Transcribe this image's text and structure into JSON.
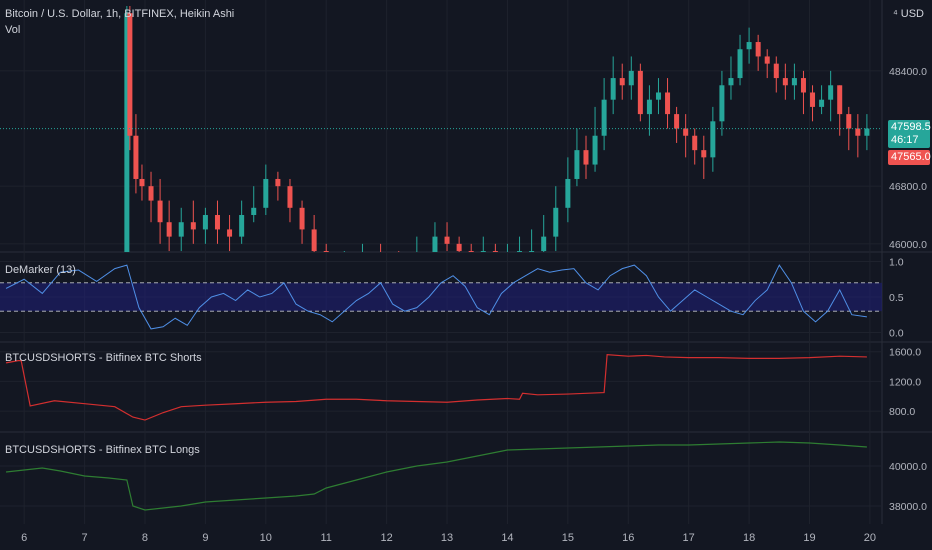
{
  "header": {
    "symbol_title": "Bitcoin / U.S. Dollar, 1h, BITFINEX, Heikin Ashi",
    "vol_label": "Vol",
    "currency": "USD"
  },
  "price_tags": {
    "last_price": "47598.5",
    "countdown": "46:17",
    "second_price": "47565.0"
  },
  "colors": {
    "background": "#131722",
    "up": "#26a69a",
    "down": "#ef5350",
    "demarker": "#4f8fe6",
    "demarker_band": "#1f1f7a",
    "shorts": "#d32f2f",
    "longs": "#2e7d32",
    "grid": "#1e222d",
    "text": "#b2b5be"
  },
  "chart_data": [
    {
      "type": "candlestick",
      "title": "Bitcoin / U.S. Dollar, 1h, BITFINEX, Heikin Ashi",
      "x_ticks": [
        "6",
        "7",
        "8",
        "9",
        "10",
        "11",
        "12",
        "13",
        "14",
        "15",
        "16",
        "17",
        "18",
        "19",
        "20"
      ],
      "y_ticks": [
        46000.0,
        46800.0,
        48400.0
      ],
      "ylim": [
        45970,
        49300
      ],
      "x_range": [
        5.6,
        20.2
      ],
      "series": [
        {
          "name": "",
          "x": [
            5.7,
            6.0,
            6.3,
            6.6,
            6.9,
            7.2,
            7.5,
            7.7,
            7.75,
            7.85,
            7.95,
            8.1,
            8.25,
            8.4,
            8.6,
            8.8,
            9.0,
            9.2,
            9.4,
            9.6,
            9.8,
            10.0,
            10.2,
            10.4,
            10.6,
            10.8,
            11.0,
            11.3,
            11.6,
            11.9,
            12.2,
            12.5,
            12.8,
            13.0,
            13.2,
            13.4,
            13.6,
            13.8,
            14.0,
            14.2,
            14.4,
            14.6,
            14.8,
            15.0,
            15.15,
            15.3,
            15.45,
            15.6,
            15.75,
            15.9,
            16.05,
            16.2,
            16.35,
            16.5,
            16.65,
            16.8,
            16.95,
            17.1,
            17.25,
            17.4,
            17.55,
            17.7,
            17.85,
            18.0,
            18.15,
            18.3,
            18.45,
            18.6,
            18.75,
            18.9,
            19.05,
            19.2,
            19.35,
            19.5,
            19.65,
            19.8,
            19.95
          ],
          "open": [
            45500,
            45500,
            45500,
            45500,
            45500,
            45500,
            45500,
            45700,
            49200,
            47500,
            46900,
            46800,
            46600,
            46300,
            46100,
            46300,
            46200,
            46400,
            46200,
            46100,
            46400,
            46500,
            46900,
            46800,
            46500,
            46200,
            45900,
            45600,
            45700,
            45800,
            45700,
            45600,
            45800,
            46100,
            46000,
            45900,
            45800,
            45900,
            45700,
            45800,
            45900,
            45900,
            46100,
            46500,
            46900,
            47300,
            47100,
            47500,
            48000,
            48300,
            48200,
            48400,
            47800,
            48000,
            48100,
            47800,
            47600,
            47500,
            47300,
            47200,
            47700,
            48200,
            48300,
            48700,
            48800,
            48600,
            48500,
            48300,
            48200,
            48300,
            48100,
            47900,
            48000,
            48200,
            47800,
            47600,
            47500
          ],
          "close": [
            45500,
            45500,
            45500,
            45500,
            45500,
            45500,
            45500,
            49200,
            47500,
            46900,
            46800,
            46600,
            46300,
            46100,
            46300,
            46200,
            46400,
            46200,
            46100,
            46400,
            46500,
            46900,
            46800,
            46500,
            46200,
            45900,
            45600,
            45700,
            45800,
            45700,
            45600,
            45800,
            46100,
            46000,
            45900,
            45800,
            45900,
            45700,
            45800,
            45900,
            45900,
            46100,
            46500,
            46900,
            47300,
            47100,
            47500,
            48000,
            48300,
            48200,
            48400,
            47800,
            48000,
            48100,
            47800,
            47600,
            47500,
            47300,
            47200,
            47700,
            48200,
            48300,
            48700,
            48800,
            48600,
            48500,
            48300,
            48200,
            48300,
            48100,
            47900,
            48000,
            48200,
            47800,
            47600,
            47500,
            47600
          ],
          "high": [
            45550,
            45550,
            45550,
            45550,
            45550,
            45550,
            45550,
            49300,
            49300,
            47800,
            47100,
            47000,
            46900,
            46600,
            46500,
            46600,
            46500,
            46600,
            46400,
            46600,
            46800,
            47100,
            47000,
            46900,
            46600,
            46400,
            46000,
            45900,
            46000,
            46000,
            45900,
            46100,
            46300,
            46300,
            46100,
            46000,
            46100,
            46000,
            46000,
            46100,
            46200,
            46400,
            46800,
            47200,
            47600,
            47500,
            47900,
            48300,
            48600,
            48500,
            48600,
            48500,
            48200,
            48300,
            48300,
            47900,
            47800,
            47600,
            47500,
            47900,
            48400,
            48600,
            48900,
            49000,
            48900,
            48700,
            48600,
            48500,
            48500,
            48400,
            48200,
            48200,
            48400,
            48200,
            47900,
            47800,
            47800
          ],
          "low": [
            45450,
            45450,
            45450,
            45450,
            45450,
            45450,
            45450,
            45600,
            47300,
            46700,
            46600,
            46300,
            46000,
            45900,
            45900,
            46000,
            46000,
            46000,
            45900,
            46000,
            46300,
            46400,
            46600,
            46300,
            46000,
            45700,
            45500,
            45500,
            45600,
            45600,
            45500,
            45500,
            45700,
            45900,
            45800,
            45700,
            45700,
            45600,
            45600,
            45700,
            45800,
            45800,
            45900,
            46300,
            46800,
            46900,
            47000,
            47300,
            47800,
            48000,
            48000,
            47700,
            47500,
            47800,
            47600,
            47400,
            47200,
            47100,
            46900,
            47000,
            47500,
            48000,
            48200,
            48500,
            48400,
            48300,
            48100,
            48000,
            48000,
            47800,
            47700,
            47800,
            47700,
            47500,
            47300,
            47200,
            47300
          ]
        }
      ]
    },
    {
      "type": "line",
      "title": "DeMarker (13)",
      "y_ticks": [
        0.0,
        0.5,
        1.0
      ],
      "ylim": [
        -0.05,
        1.05
      ],
      "band": [
        0.3,
        0.7
      ],
      "series": [
        {
          "name": "",
          "x": [
            5.7,
            6.0,
            6.3,
            6.6,
            6.9,
            7.2,
            7.5,
            7.7,
            7.9,
            8.1,
            8.3,
            8.5,
            8.7,
            8.9,
            9.1,
            9.3,
            9.5,
            9.7,
            9.9,
            10.1,
            10.3,
            10.5,
            10.7,
            10.9,
            11.1,
            11.3,
            11.5,
            11.7,
            11.9,
            12.1,
            12.3,
            12.5,
            12.7,
            12.9,
            13.1,
            13.3,
            13.5,
            13.7,
            13.9,
            14.1,
            14.3,
            14.5,
            14.7,
            14.9,
            15.1,
            15.3,
            15.5,
            15.7,
            15.9,
            16.1,
            16.3,
            16.5,
            16.7,
            16.9,
            17.1,
            17.3,
            17.5,
            17.7,
            17.9,
            18.1,
            18.3,
            18.5,
            18.7,
            18.9,
            19.1,
            19.3,
            19.5,
            19.7,
            19.95
          ],
          "values": [
            0.62,
            0.75,
            0.55,
            0.85,
            0.88,
            0.72,
            0.9,
            0.95,
            0.35,
            0.05,
            0.08,
            0.2,
            0.1,
            0.35,
            0.5,
            0.55,
            0.45,
            0.6,
            0.5,
            0.55,
            0.7,
            0.4,
            0.3,
            0.25,
            0.15,
            0.3,
            0.45,
            0.55,
            0.7,
            0.4,
            0.3,
            0.35,
            0.5,
            0.7,
            0.8,
            0.65,
            0.35,
            0.25,
            0.55,
            0.7,
            0.8,
            0.9,
            0.85,
            0.88,
            0.9,
            0.7,
            0.6,
            0.8,
            0.9,
            0.95,
            0.8,
            0.5,
            0.3,
            0.45,
            0.6,
            0.5,
            0.4,
            0.3,
            0.25,
            0.45,
            0.6,
            0.95,
            0.7,
            0.3,
            0.15,
            0.3,
            0.6,
            0.25,
            0.22
          ]
        }
      ]
    },
    {
      "type": "line",
      "title": "BTCUSDSHORTS - Bitfinex BTC Shorts",
      "y_ticks": [
        800.0,
        1200.0,
        1600.0
      ],
      "ylim": [
        600,
        1650
      ],
      "series": [
        {
          "name": "",
          "x": [
            5.7,
            5.9,
            5.95,
            6.1,
            6.5,
            7.0,
            7.5,
            7.8,
            8.0,
            8.3,
            8.6,
            9.0,
            9.5,
            10.0,
            10.5,
            11.0,
            11.5,
            12.0,
            12.5,
            13.0,
            13.5,
            14.0,
            14.2,
            14.25,
            14.5,
            15.0,
            15.3,
            15.6,
            15.65,
            16.0,
            16.3,
            16.6,
            17.0,
            17.5,
            18.0,
            18.5,
            19.0,
            19.5,
            19.95
          ],
          "values": [
            1450,
            1480,
            1480,
            870,
            940,
            900,
            860,
            720,
            680,
            780,
            860,
            880,
            900,
            920,
            930,
            960,
            960,
            940,
            930,
            920,
            950,
            970,
            960,
            1040,
            1020,
            1030,
            1040,
            1050,
            1560,
            1540,
            1550,
            1530,
            1520,
            1520,
            1510,
            1510,
            1520,
            1540,
            1530
          ]
        }
      ]
    },
    {
      "type": "line",
      "title": "BTCUSDSHORTS - Bitfinex BTC Longs",
      "y_ticks": [
        38000.0,
        40000.0
      ],
      "ylim": [
        37400,
        41400
      ],
      "series": [
        {
          "name": "",
          "x": [
            5.7,
            6.0,
            6.3,
            6.6,
            7.0,
            7.4,
            7.7,
            7.8,
            8.0,
            8.3,
            8.6,
            9.0,
            9.5,
            10.0,
            10.5,
            10.8,
            11.0,
            11.5,
            12.0,
            12.5,
            13.0,
            13.5,
            14.0,
            14.5,
            15.0,
            15.5,
            16.0,
            16.5,
            17.0,
            17.5,
            18.0,
            18.5,
            19.0,
            19.5,
            19.95
          ],
          "values": [
            39700,
            39800,
            39900,
            39750,
            39500,
            39400,
            39300,
            38000,
            37800,
            37900,
            38000,
            38200,
            38300,
            38400,
            38500,
            38600,
            38900,
            39300,
            39700,
            40000,
            40200,
            40500,
            40800,
            40850,
            40900,
            40950,
            41000,
            41050,
            41050,
            41100,
            41150,
            41200,
            41150,
            41050,
            40950
          ]
        }
      ]
    }
  ]
}
